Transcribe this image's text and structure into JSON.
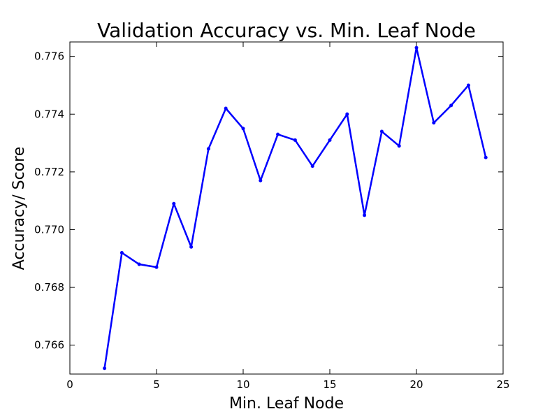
{
  "chart_data": {
    "type": "line",
    "title": "Validation Accuracy vs. Min. Leaf Node",
    "xlabel": "Min. Leaf Node",
    "ylabel": "Accuracy/ Score",
    "xlim": [
      0,
      25
    ],
    "ylim": [
      0.765,
      0.7765
    ],
    "xticks": [
      0,
      5,
      10,
      15,
      20,
      25
    ],
    "yticks": [
      0.766,
      0.768,
      0.77,
      0.772,
      0.774,
      0.776
    ],
    "ytick_format": 3,
    "grid": false,
    "line_color": "#0000ff",
    "marker": "dot",
    "series": [
      {
        "x": [
          2,
          3,
          4,
          5,
          6,
          7,
          8,
          9,
          10,
          11,
          12,
          13,
          14,
          15,
          16,
          17,
          18,
          19,
          20,
          21,
          22,
          23,
          24
        ],
        "values": [
          0.7652,
          0.7692,
          0.7688,
          0.7687,
          0.7709,
          0.7694,
          0.7728,
          0.7742,
          0.7735,
          0.7717,
          0.7733,
          0.7731,
          0.7722,
          0.7731,
          0.774,
          0.7705,
          0.7734,
          0.7729,
          0.7763,
          0.7737,
          0.7743,
          0.775,
          0.7725
        ]
      }
    ]
  }
}
